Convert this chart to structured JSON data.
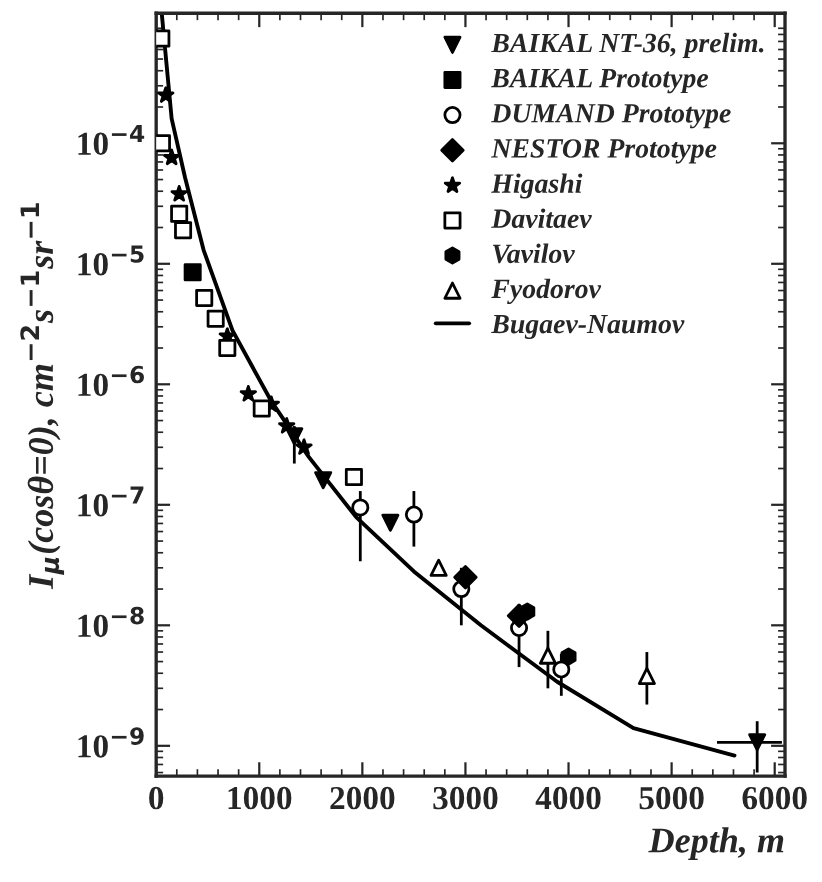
{
  "chart_data": {
    "type": "scatter",
    "xlabel": "Depth, m",
    "ylabel": "I$_{μ}$(cosθ=0), cm$^{−2}$s$^{−1}$sr$^{−1}$",
    "log": "y",
    "grid": false,
    "legend": "top right",
    "xlim": [
      0,
      6100
    ],
    "xticks": [
      0,
      1000,
      2000,
      3000,
      4000,
      5000,
      6000
    ],
    "ylim": [
      5.6e-10,
      0.0012
    ],
    "yticks": [
      {
        "value": 1e-09,
        "label": "10$^{−9}$"
      },
      {
        "value": 1e-08,
        "label": "10$^{−8}$"
      },
      {
        "value": 1e-07,
        "label": "10$^{−7}$"
      },
      {
        "value": 1e-06,
        "label": "10$^{−6}$"
      },
      {
        "value": 1e-05,
        "label": "10$^{−5}$"
      },
      {
        "value": 0.0001,
        "label": "10$^{−4}$"
      }
    ],
    "series": [
      {
        "name": "BAIKAL NT-36, prelim.",
        "color": "#000000",
        "marker": "triangle-down",
        "x": [
          1340,
          1620,
          2272,
          5830
        ],
        "values": [
          3.7e-07,
          1.6e-07,
          7.1e-08,
          1.07e-09
        ],
        "errors": [
          [
            2.2e-07,
            4.5e-07
          ],
          null,
          null,
          [
            6e-10,
            1.6e-09
          ]
        ],
        "xerrors": [
          null,
          null,
          null,
          [
            5440,
            6070
          ]
        ]
      },
      {
        "name": "BAIKAL Prototype",
        "color": "#000000",
        "marker": "square",
        "x": [
          354
        ],
        "values": [
          8.5e-06
        ]
      },
      {
        "name": "DUMAND Prototype",
        "color": "#000000",
        "marker": "circle-open",
        "x": [
          1980,
          2500,
          2960,
          3520,
          3930
        ],
        "values": [
          9.5e-08,
          8.3e-08,
          2e-08,
          9.5e-09,
          4.3e-09
        ],
        "errors": [
          [
            3.4e-08,
            1.3e-07
          ],
          [
            4.5e-08,
            1.3e-07
          ],
          [
            1e-08,
            3e-08
          ],
          [
            4.5e-09,
            1.5e-08
          ],
          [
            2.6e-09,
            5.8e-09
          ]
        ]
      },
      {
        "name": "NESTOR Prototype",
        "color": "#000000",
        "marker": "diamond",
        "x": [
          3000,
          3520
        ],
        "values": [
          2.5e-08,
          1.2e-08
        ]
      },
      {
        "name": "Higashi",
        "color": "#000000",
        "marker": "star",
        "x": [
          93,
          150,
          223,
          690,
          894,
          1117,
          1266,
          1434
        ],
        "values": [
          0.00025,
          7.6e-05,
          3.8e-05,
          2.5e-06,
          8.3e-07,
          6.8e-07,
          4.5e-07,
          3e-07
        ]
      },
      {
        "name": "Davitaev",
        "color": "#000000",
        "marker": "square-open",
        "x": [
          50,
          56,
          223,
          261,
          466,
          577,
          690,
          1024,
          1918
        ],
        "values": [
          0.00074,
          0.0001,
          2.6e-05,
          1.9e-05,
          5.2e-06,
          3.5e-06,
          2e-06,
          6.3e-07,
          1.7e-07
        ]
      },
      {
        "name": "Vavilov",
        "color": "#000000",
        "marker": "circle-cross",
        "x": [
          3600,
          4000
        ],
        "values": [
          1.3e-08,
          5.5e-09
        ]
      },
      {
        "name": "Fyodorov",
        "color": "#000000",
        "marker": "triangle-open",
        "x": [
          2740,
          3800,
          4760
        ],
        "values": [
          3e-08,
          5.6e-09,
          3.8e-09
        ],
        "errors": [
          null,
          [
            3e-09,
            9e-09
          ],
          [
            2.2e-09,
            6e-09
          ]
        ]
      },
      {
        "name": "Bugaev-Naumov",
        "type": "line",
        "color": "#000000",
        "marker": "none",
        "line_style": "solid",
        "x": [
          55,
          150,
          280,
          460,
          740,
          1110,
          1480,
          1940,
          2500,
          3150,
          3890,
          4630,
          5610
        ],
        "values": [
          0.00117,
          0.00016,
          5.2e-05,
          1.3e-05,
          2.8e-06,
          7.4e-07,
          2.5e-07,
          7.9e-08,
          2.8e-08,
          1e-08,
          3.4e-09,
          1.4e-09,
          8.3e-10
        ]
      }
    ]
  }
}
